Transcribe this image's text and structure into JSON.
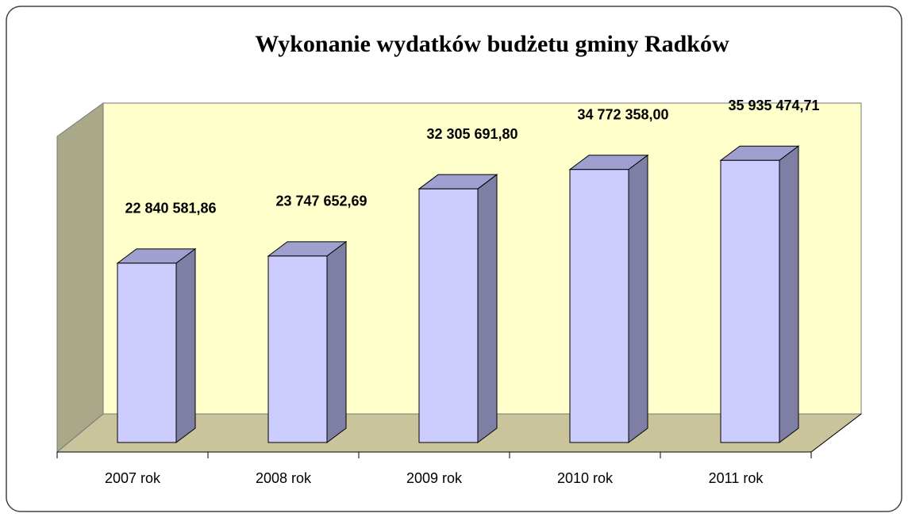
{
  "chart_data": {
    "type": "bar3d",
    "title": "Wykonanie wydatków budżetu gminy Radków",
    "categories": [
      "2007 rok",
      "2008 rok",
      "2009 rok",
      "2010 rok",
      "2011 rok"
    ],
    "values": [
      22840581.86,
      23747652.69,
      32305691.8,
      34772358.0,
      35935474.71
    ],
    "value_labels": [
      "22 840 581,86",
      "23 747 652,69",
      "32 305 691,80",
      "34 772 358,00",
      "35 935 474,71"
    ],
    "color": "#ccccff",
    "ylim": [
      0,
      40000000
    ]
  }
}
